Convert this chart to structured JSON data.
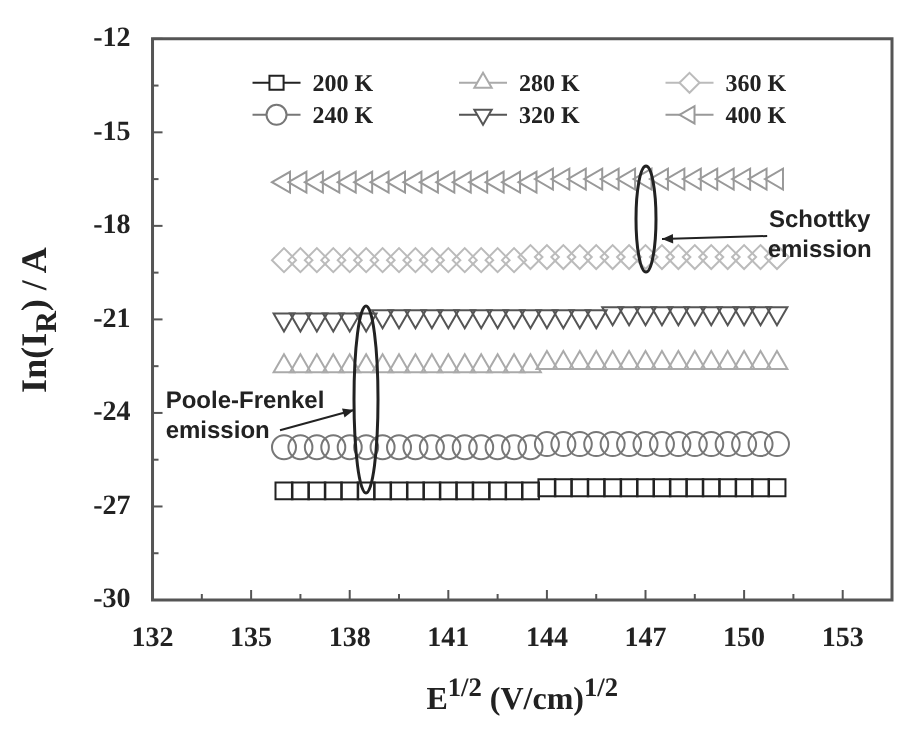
{
  "chart_data": {
    "type": "scatter",
    "xlabel": "E$^{1/2}$ (V/cm)$^{1/2}$",
    "ylabel": "In(I$_{R}$) / A",
    "x": [
      136,
      136.5,
      137,
      137.5,
      138,
      138.5,
      139,
      139.5,
      140,
      140.5,
      141,
      141.5,
      142,
      142.5,
      143,
      143.5,
      144,
      144.5,
      145,
      145.5,
      146,
      146.5,
      147,
      147.5,
      148,
      148.5,
      149,
      149.5,
      150,
      150.5,
      151
    ],
    "xlim": [
      132,
      154.5
    ],
    "xticks": [
      132,
      {
        "value": 133.5,
        "label": null
      },
      135,
      {
        "value": 136.5,
        "label": null
      },
      138,
      {
        "value": 139.5,
        "label": null
      },
      141,
      {
        "value": 142.5,
        "label": null
      },
      144,
      {
        "value": 145.5,
        "label": null
      },
      147,
      {
        "value": 148.5,
        "label": null
      },
      150,
      {
        "value": 151.5,
        "label": null
      },
      153,
      {
        "value": 154.5,
        "label": null
      }
    ],
    "ylim": [
      -30,
      -12
    ],
    "yticks": [
      -30,
      {
        "value": -28.5,
        "label": null
      },
      -27,
      {
        "value": -25.5,
        "label": null
      },
      -24,
      {
        "value": -22.5,
        "label": null
      },
      -21,
      {
        "value": -19.5,
        "label": null
      },
      -18,
      {
        "value": -16.5,
        "label": null
      },
      -15,
      {
        "value": -13.5,
        "label": null
      },
      -12
    ],
    "series": [
      {
        "name": "200 K",
        "color": "#222222",
        "marker": "square",
        "values": [
          -26.5,
          -26.5,
          -26.5,
          -26.5,
          -26.5,
          -26.5,
          -26.5,
          -26.5,
          -26.5,
          -26.5,
          -26.5,
          -26.5,
          -26.5,
          -26.5,
          -26.5,
          -26.5,
          -26.4,
          -26.4,
          -26.4,
          -26.4,
          -26.4,
          -26.4,
          -26.4,
          -26.4,
          -26.4,
          -26.4,
          -26.4,
          -26.4,
          -26.4,
          -26.4,
          -26.4
        ]
      },
      {
        "name": "240 K",
        "color": "#777777",
        "marker": "circle",
        "values": [
          -25.1,
          -25.1,
          -25.1,
          -25.1,
          -25.1,
          -25.1,
          -25.1,
          -25.1,
          -25.1,
          -25.1,
          -25.1,
          -25.1,
          -25.1,
          -25.1,
          -25.1,
          -25.1,
          -25.0,
          -25.0,
          -25.0,
          -25.0,
          -25.0,
          -25.0,
          -25.0,
          -25.0,
          -25.0,
          -25.0,
          -25.0,
          -25.0,
          -25.0,
          -25.0,
          -25.0
        ]
      },
      {
        "name": "280 K",
        "color": "#aaaaaa",
        "marker": "triangle",
        "values": [
          -22.5,
          -22.5,
          -22.5,
          -22.5,
          -22.5,
          -22.5,
          -22.5,
          -22.5,
          -22.5,
          -22.5,
          -22.5,
          -22.5,
          -22.5,
          -22.5,
          -22.5,
          -22.5,
          -22.4,
          -22.4,
          -22.4,
          -22.4,
          -22.4,
          -22.4,
          -22.4,
          -22.4,
          -22.4,
          -22.4,
          -22.4,
          -22.4,
          -22.4,
          -22.4,
          -22.4
        ]
      },
      {
        "name": "320 K",
        "color": "#555555",
        "marker": "triangle-down",
        "values": [
          -21.0,
          -21.0,
          -21.0,
          -21.0,
          -21.0,
          -21.0,
          -20.9,
          -20.9,
          -20.9,
          -20.9,
          -20.9,
          -20.9,
          -20.9,
          -20.9,
          -20.9,
          -20.9,
          -20.9,
          -20.9,
          -20.9,
          -20.9,
          -20.8,
          -20.8,
          -20.8,
          -20.8,
          -20.8,
          -20.8,
          -20.8,
          -20.8,
          -20.8,
          -20.8,
          -20.8
        ]
      },
      {
        "name": "360 K",
        "color": "#bbbbbb",
        "marker": "diamond",
        "values": [
          -19.1,
          -19.1,
          -19.1,
          -19.1,
          -19.1,
          -19.1,
          -19.1,
          -19.1,
          -19.1,
          -19.1,
          -19.1,
          -19.1,
          -19.1,
          -19.1,
          -19.1,
          -19.0,
          -19.0,
          -19.0,
          -19.0,
          -19.0,
          -19.0,
          -19.0,
          -19.0,
          -19.0,
          -19.0,
          -19.0,
          -19.0,
          -19.0,
          -19.0,
          -19.0,
          -19.0
        ]
      },
      {
        "name": "400 K",
        "color": "#999999",
        "marker": "triangle-left",
        "values": [
          -16.6,
          -16.6,
          -16.6,
          -16.6,
          -16.6,
          -16.6,
          -16.6,
          -16.6,
          -16.6,
          -16.6,
          -16.6,
          -16.6,
          -16.6,
          -16.6,
          -16.6,
          -16.6,
          -16.5,
          -16.5,
          -16.5,
          -16.5,
          -16.5,
          -16.5,
          -16.5,
          -16.5,
          -16.5,
          -16.5,
          -16.5,
          -16.5,
          -16.5,
          -16.5,
          -16.5
        ]
      }
    ],
    "legend": "top",
    "annotations": [
      "Schottky emission",
      "Poole-Frenkel emission"
    ]
  }
}
